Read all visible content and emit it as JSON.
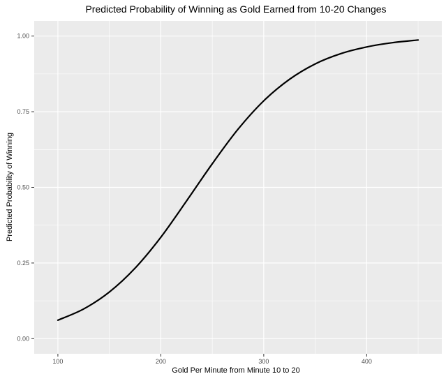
{
  "chart_data": {
    "type": "line",
    "title": "Predicted Probability of Winning as Gold Earned from 10-20 Changes",
    "xlabel": "Gold Per Minute from Minute 10 to 20",
    "ylabel": "Predicted Probability of Winning",
    "xlim": [
      77,
      473
    ],
    "ylim": [
      -0.05,
      1.05
    ],
    "x_ticks": [
      100,
      200,
      300,
      400
    ],
    "x_tick_labels": [
      "100",
      "200",
      "300",
      "400"
    ],
    "y_ticks": [
      0,
      0.25,
      0.5,
      0.75,
      1.0
    ],
    "y_tick_labels": [
      "0.00",
      "0.25",
      "0.50",
      "0.75",
      "1.00"
    ],
    "grid": true,
    "legend": "none",
    "colors": {
      "panel_background": "#ebebeb",
      "grid_major": "#ffffff",
      "line": "#000000",
      "text": "#000000",
      "tick_label": "#4d4d4d"
    },
    "series": [
      {
        "x": [
          100,
          125,
          150,
          175,
          200,
          225,
          250,
          275,
          300,
          325,
          350,
          375,
          400,
          425,
          450
        ],
        "y": [
          0.061,
          0.098,
          0.154,
          0.233,
          0.335,
          0.455,
          0.578,
          0.692,
          0.786,
          0.857,
          0.908,
          0.942,
          0.964,
          0.978,
          0.987
        ]
      }
    ]
  }
}
